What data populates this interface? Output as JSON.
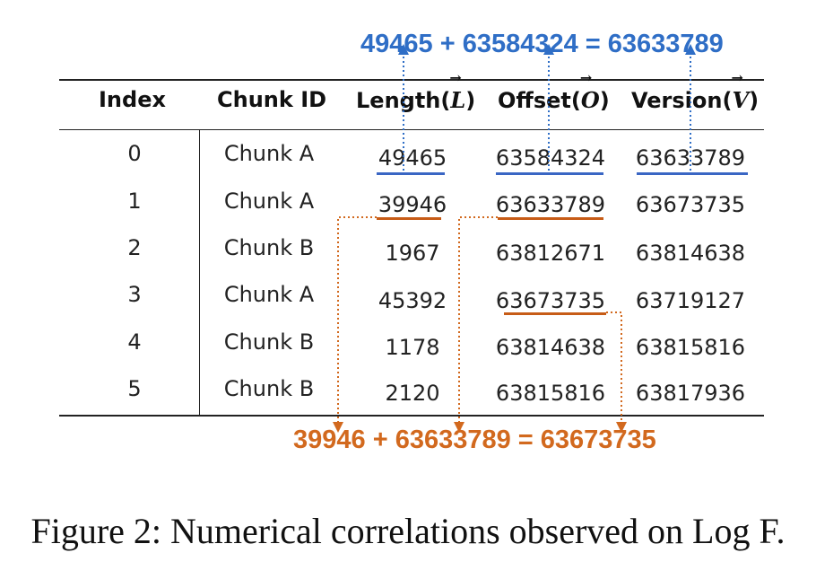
{
  "equation_top": "49465 + 63584324 = 63633789",
  "equation_bottom": "39946 + 63633789 = 63673735",
  "headers": {
    "index": "Index",
    "chunk_id": "Chunk ID",
    "length_prefix": "Length(",
    "length_var": "L",
    "length_suffix": ")",
    "offset_prefix": "Offset(",
    "offset_var": "O",
    "offset_suffix": ")",
    "version_prefix": "Version(",
    "version_var": "V",
    "version_suffix": ")"
  },
  "rows": [
    {
      "index": "0",
      "chunk": "Chunk A",
      "length": "49465",
      "offset": "63584324",
      "version": "63633789"
    },
    {
      "index": "1",
      "chunk": "Chunk A",
      "length": "39946",
      "offset": "63633789",
      "version": "63673735"
    },
    {
      "index": "2",
      "chunk": "Chunk B",
      "length": "1967",
      "offset": "63812671",
      "version": "63814638"
    },
    {
      "index": "3",
      "chunk": "Chunk A",
      "length": "45392",
      "offset": "63673735",
      "version": "63719127"
    },
    {
      "index": "4",
      "chunk": "Chunk B",
      "length": "1178",
      "offset": "63814638",
      "version": "63815816"
    },
    {
      "index": "5",
      "chunk": "Chunk B",
      "length": "2120",
      "offset": "63815816",
      "version": "63817936"
    }
  ],
  "colors": {
    "blue": "#2f6ec6",
    "orange": "#d2691e"
  },
  "caption": "Figure 2: Numerical correlations observed on Log F."
}
